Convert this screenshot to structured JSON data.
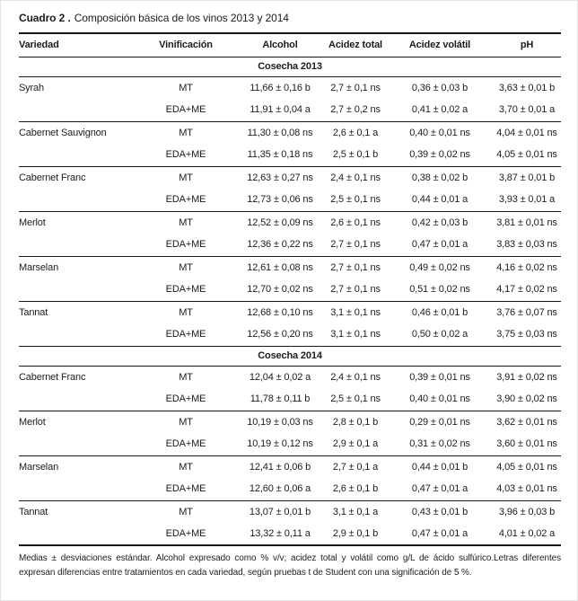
{
  "title": {
    "bold": "Cuadro 2 .",
    "rest": "Composición básica de los vinos 2013 y 2014"
  },
  "table": {
    "columns": [
      "Variedad",
      "Vinificación",
      "Alcohol",
      "Acidez total",
      "Acidez volátil",
      "pH"
    ],
    "sections": [
      {
        "label": "Cosecha 2013",
        "groups": [
          {
            "variety": "Syrah",
            "rows": [
              {
                "vinification": "MT",
                "alcohol": "11,66 ± 0,16 b",
                "acidez_total": "2,7 ± 0,1 ns",
                "acidez_volatil": "0,36 ± 0,03 b",
                "ph": "3,63 ± 0,01 b"
              },
              {
                "vinification": "EDA+ME",
                "alcohol": "11,91 ± 0,04 a",
                "acidez_total": "2,7 ± 0,2 ns",
                "acidez_volatil": "0,41 ± 0,02 a",
                "ph": "3,70 ± 0,01 a"
              }
            ]
          },
          {
            "variety": "Cabernet Sauvignon",
            "rows": [
              {
                "vinification": "MT",
                "alcohol": "11,30 ± 0,08 ns",
                "acidez_total": "2,6 ± 0,1 a",
                "acidez_volatil": "0,40 ± 0,01 ns",
                "ph": "4,04 ± 0,01 ns"
              },
              {
                "vinification": "EDA+ME",
                "alcohol": "11,35 ± 0,18 ns",
                "acidez_total": "2,5 ± 0,1 b",
                "acidez_volatil": "0,39 ± 0,02 ns",
                "ph": "4,05 ± 0,01 ns"
              }
            ]
          },
          {
            "variety": "Cabernet Franc",
            "rows": [
              {
                "vinification": "MT",
                "alcohol": "12,63 ± 0,27 ns",
                "acidez_total": "2,4 ± 0,1 ns",
                "acidez_volatil": "0,38 ± 0,02 b",
                "ph": "3,87 ± 0,01 b"
              },
              {
                "vinification": "EDA+ME",
                "alcohol": "12,73 ± 0,06 ns",
                "acidez_total": "2,5 ± 0,1 ns",
                "acidez_volatil": "0,44 ± 0,01 a",
                "ph": "3,93 ± 0,01 a"
              }
            ]
          },
          {
            "variety": "Merlot",
            "rows": [
              {
                "vinification": "MT",
                "alcohol": "12,52 ± 0,09 ns",
                "acidez_total": "2,6 ± 0,1 ns",
                "acidez_volatil": "0,42 ± 0,03 b",
                "ph": "3,81 ± 0,01 ns"
              },
              {
                "vinification": "EDA+ME",
                "alcohol": "12,36 ± 0,22 ns",
                "acidez_total": "2,7 ± 0,1 ns",
                "acidez_volatil": "0,47 ± 0,01 a",
                "ph": "3,83 ± 0,03 ns"
              }
            ]
          },
          {
            "variety": "Marselan",
            "rows": [
              {
                "vinification": "MT",
                "alcohol": "12,61 ± 0,08 ns",
                "acidez_total": "2,7 ± 0,1 ns",
                "acidez_volatil": "0,49 ± 0,02 ns",
                "ph": "4,16 ± 0,02 ns"
              },
              {
                "vinification": "EDA+ME",
                "alcohol": "12,70 ± 0,02 ns",
                "acidez_total": "2,7 ± 0,1 ns",
                "acidez_volatil": "0,51 ± 0,02 ns",
                "ph": "4,17 ± 0,02 ns"
              }
            ]
          },
          {
            "variety": "Tannat",
            "rows": [
              {
                "vinification": "MT",
                "alcohol": "12,68 ± 0,10 ns",
                "acidez_total": "3,1 ± 0,1 ns",
                "acidez_volatil": "0,46 ± 0,01 b",
                "ph": "3,76 ± 0,07 ns"
              },
              {
                "vinification": "EDA+ME",
                "alcohol": "12,56 ± 0,20 ns",
                "acidez_total": "3,1 ± 0,1 ns",
                "acidez_volatil": "0,50 ± 0,02 a",
                "ph": "3,75 ± 0,03 ns"
              }
            ]
          }
        ]
      },
      {
        "label": "Cosecha 2014",
        "groups": [
          {
            "variety": "Cabernet Franc",
            "rows": [
              {
                "vinification": "MT",
                "alcohol": "12,04 ± 0,02 a",
                "acidez_total": "2,4 ± 0,1 ns",
                "acidez_volatil": "0,39 ± 0,01 ns",
                "ph": "3,91 ± 0,02 ns"
              },
              {
                "vinification": "EDA+ME",
                "alcohol": "11,78 ± 0,11 b",
                "acidez_total": "2,5 ± 0,1 ns",
                "acidez_volatil": "0,40 ± 0,01 ns",
                "ph": "3,90 ± 0,02 ns"
              }
            ]
          },
          {
            "variety": "Merlot",
            "rows": [
              {
                "vinification": "MT",
                "alcohol": "10,19 ± 0,03 ns",
                "acidez_total": "2,8 ± 0,1 b",
                "acidez_volatil": "0,29 ± 0,01 ns",
                "ph": "3,62 ± 0,01 ns"
              },
              {
                "vinification": "EDA+ME",
                "alcohol": "10,19 ± 0,12 ns",
                "acidez_total": "2,9 ± 0,1 a",
                "acidez_volatil": "0,31 ± 0,02 ns",
                "ph": "3,60 ± 0,01 ns"
              }
            ]
          },
          {
            "variety": "Marselan",
            "rows": [
              {
                "vinification": "MT",
                "alcohol": "12,41 ± 0,06 b",
                "acidez_total": "2,7 ± 0,1 a",
                "acidez_volatil": "0,44 ± 0,01 b",
                "ph": "4,05 ± 0,01 ns"
              },
              {
                "vinification": "EDA+ME",
                "alcohol": "12,60 ± 0,06 a",
                "acidez_total": "2,6 ± 0,1 b",
                "acidez_volatil": "0,47 ± 0,01 a",
                "ph": "4,03 ± 0,01 ns"
              }
            ]
          },
          {
            "variety": "Tannat",
            "rows": [
              {
                "vinification": "MT",
                "alcohol": "13,07 ± 0,01 b",
                "acidez_total": "3,1 ± 0,1 a",
                "acidez_volatil": "0,43 ± 0,01 b",
                "ph": "3,96 ± 0,03 b"
              },
              {
                "vinification": "EDA+ME",
                "alcohol": "13,32 ± 0,11 a",
                "acidez_total": "2,9 ± 0,1 b",
                "acidez_volatil": "0,47 ± 0,01 a",
                "ph": "4,01 ± 0,02 a"
              }
            ]
          }
        ]
      }
    ]
  },
  "footnote": "Medias  ± desviaciones estándar. Alcohol expresado como % v/v; acidez total y volátil como g/L de ácido sulfúrico.Letras diferentes expresan diferencias entre tratamientos en cada variedad, según pruebas t de Student con una significación de 5 %."
}
